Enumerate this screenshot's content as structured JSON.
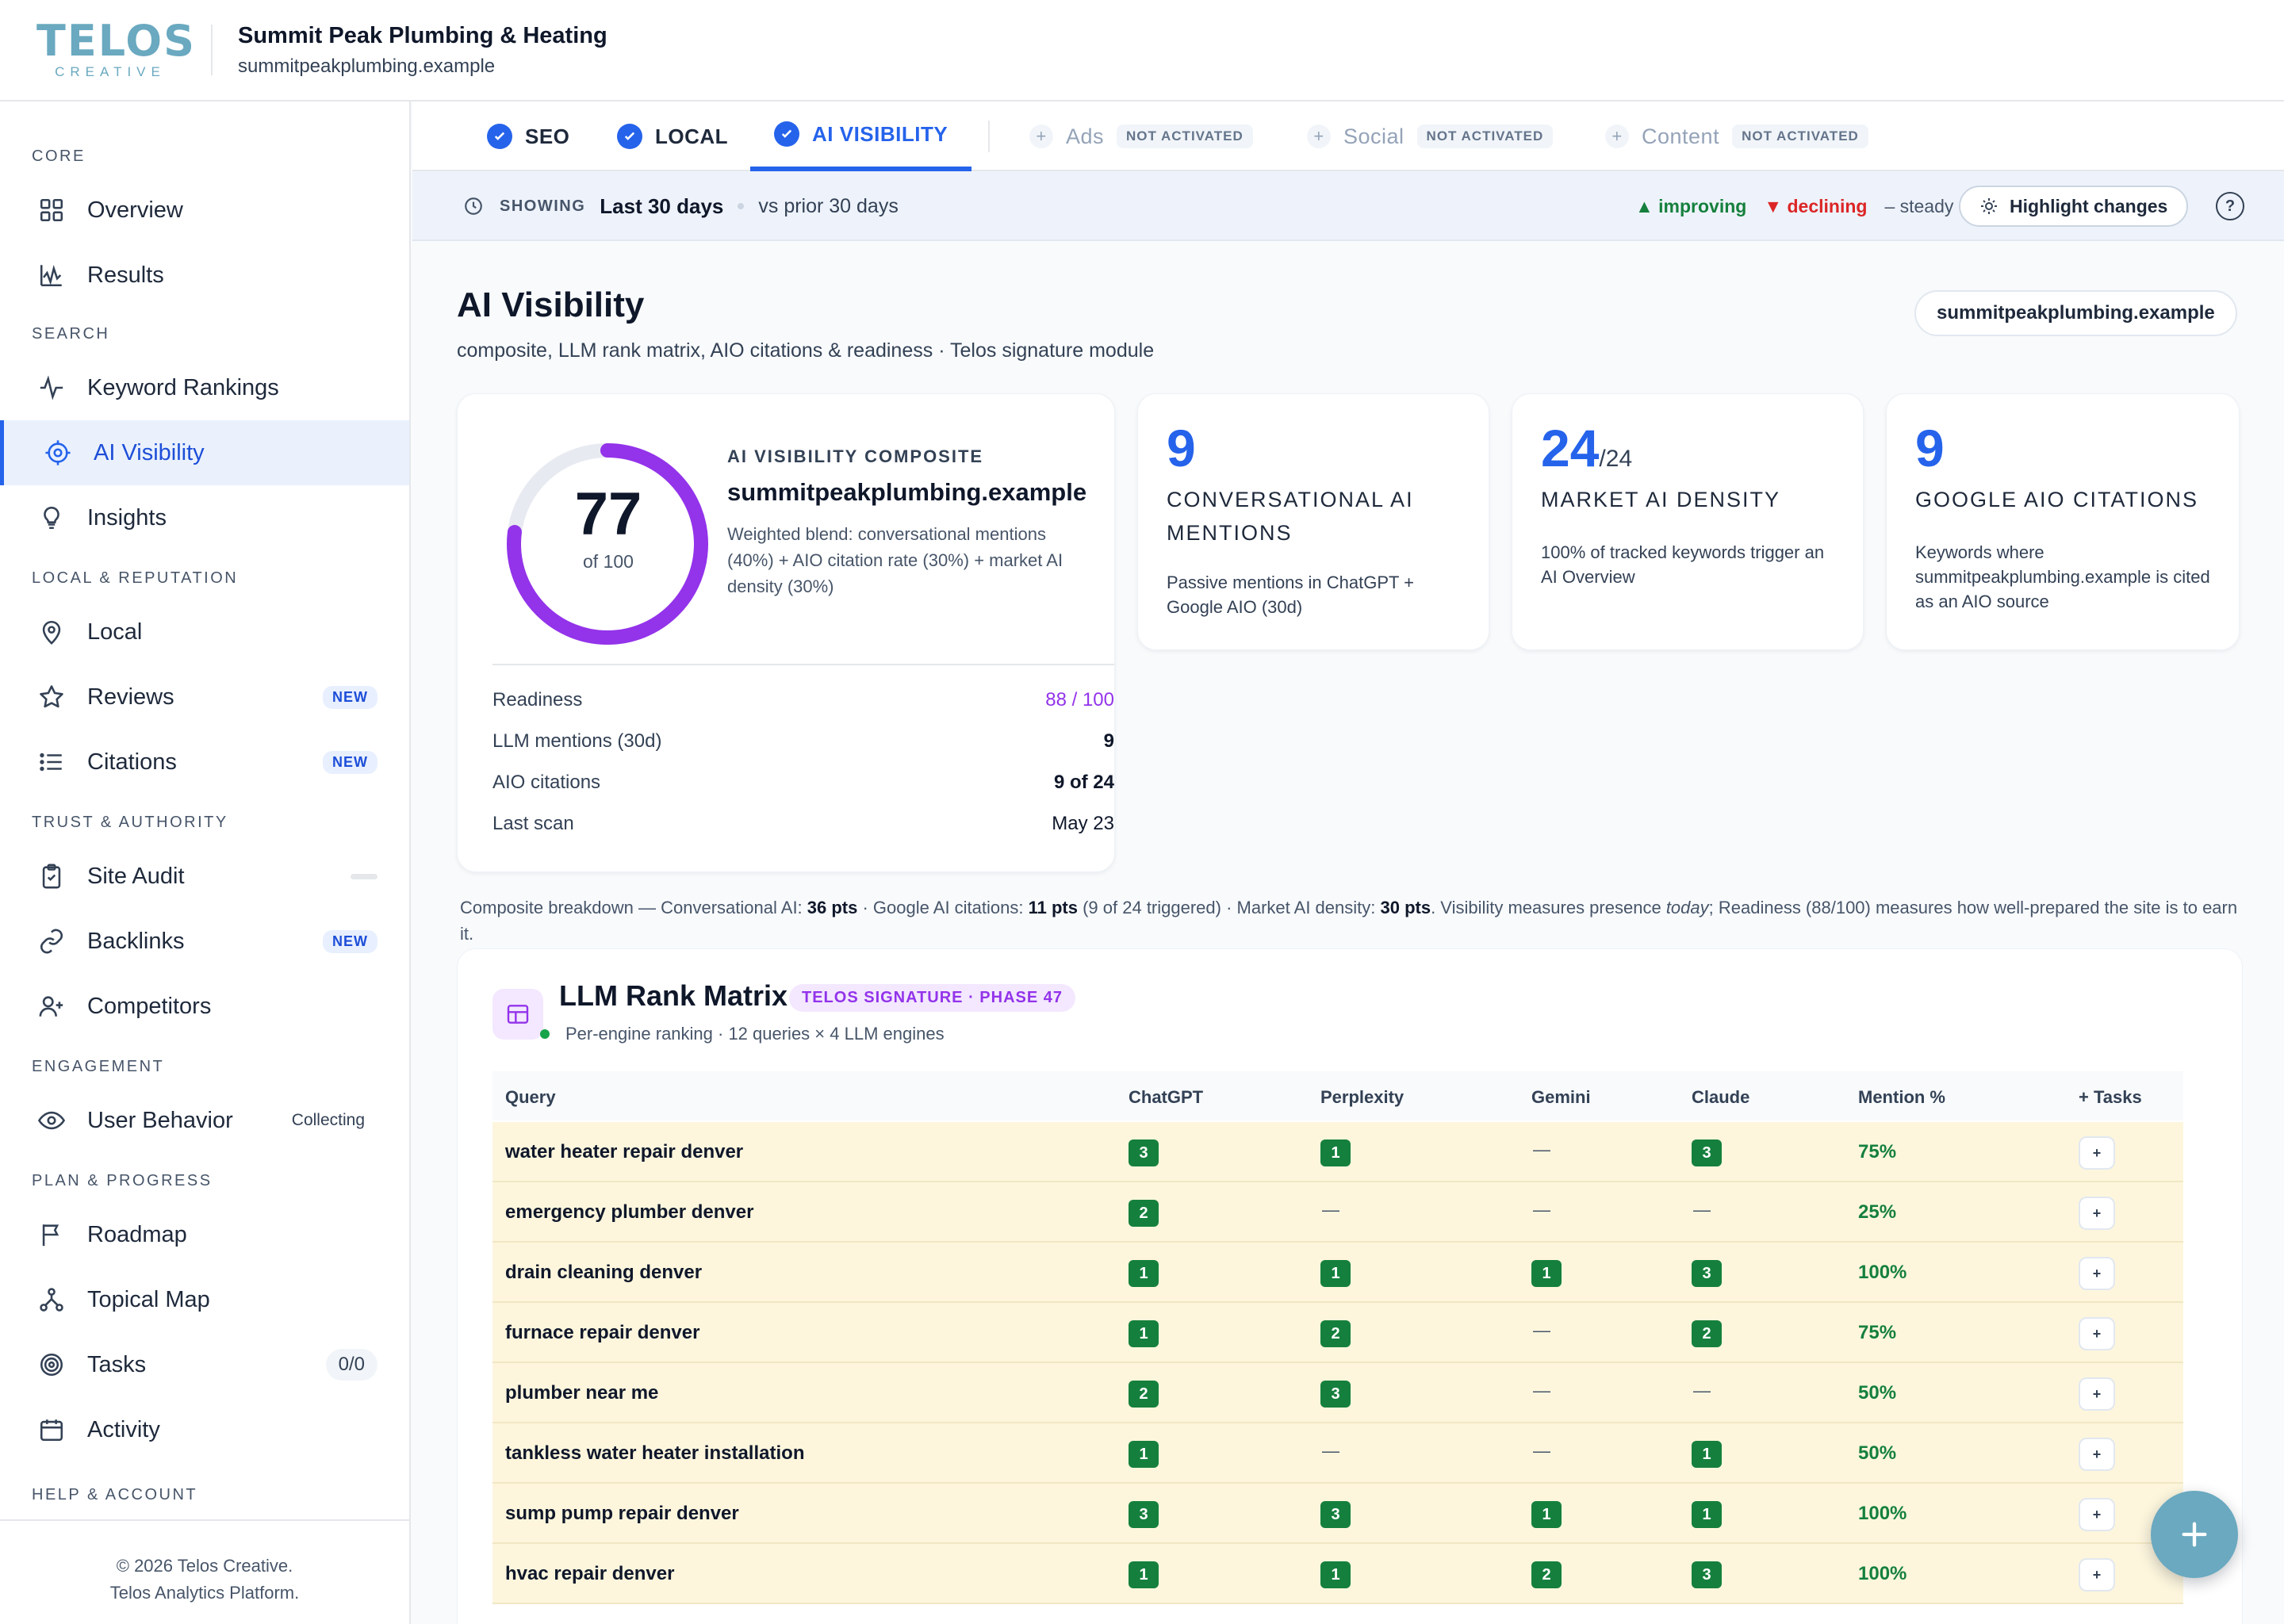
{
  "brand": {
    "logo_main": "TELOS",
    "logo_sub": "CREATIVE"
  },
  "org": {
    "name": "Summit Peak Plumbing & Heating",
    "domain": "summitpeakplumbing.example"
  },
  "sidebar": {
    "sections": [
      "CORE",
      "SEARCH",
      "LOCAL & REPUTATION",
      "TRUST & AUTHORITY",
      "ENGAGEMENT",
      "PLAN & PROGRESS",
      "HELP & ACCOUNT"
    ],
    "items": [
      {
        "label": "Overview",
        "icon": "grid-icon"
      },
      {
        "label": "Results",
        "icon": "pulse-chart-icon"
      },
      {
        "label": "Keyword Rankings",
        "icon": "activity-icon"
      },
      {
        "label": "AI Visibility",
        "icon": "target-icon",
        "active": true
      },
      {
        "label": "Insights",
        "icon": "lightbulb-icon"
      },
      {
        "label": "Local",
        "icon": "map-pin-icon"
      },
      {
        "label": "Reviews",
        "icon": "star-icon",
        "badge": "NEW"
      },
      {
        "label": "Citations",
        "icon": "list-icon",
        "badge": "NEW"
      },
      {
        "label": "Site Audit",
        "icon": "clipboard-check-icon"
      },
      {
        "label": "Backlinks",
        "icon": "link-icon",
        "badge": "NEW"
      },
      {
        "label": "Competitors",
        "icon": "user-plus-icon"
      },
      {
        "label": "User Behavior",
        "icon": "eye-icon",
        "badge": "Collecting"
      },
      {
        "label": "Roadmap",
        "icon": "flag-icon"
      },
      {
        "label": "Topical Map",
        "icon": "network-icon"
      },
      {
        "label": "Tasks",
        "icon": "bullseye-icon",
        "badge": "0/0"
      },
      {
        "label": "Activity",
        "icon": "calendar-icon"
      }
    ],
    "footer_line1": "© 2026 Telos Creative.",
    "footer_line2": "Telos Analytics Platform."
  },
  "tabs": {
    "active": [
      {
        "label": "SEO"
      },
      {
        "label": "LOCAL"
      },
      {
        "label": "AI VISIBILITY"
      }
    ],
    "inactive": [
      {
        "label": "Ads"
      },
      {
        "label": "Social"
      },
      {
        "label": "Content"
      }
    ],
    "inactive_badge": "NOT ACTIVATED"
  },
  "filter": {
    "showing_label": "SHOWING",
    "range": "Last 30 days",
    "compare": "vs prior 30 days",
    "improving": "▲ improving",
    "declining": "▼ declining",
    "steady": "– steady",
    "highlight_button": "Highlight changes",
    "help": "?"
  },
  "page": {
    "title": "AI Visibility",
    "subtitle": "composite, LLM rank matrix, AIO citations & readiness · Telos signature module",
    "domain_pill": "summitpeakplumbing.example"
  },
  "composite": {
    "eyebrow": "AI VISIBILITY COMPOSITE",
    "domain": "summitpeakplumbing.example",
    "description": "Weighted blend: conversational mentions (40%) + AIO citation rate (30%) + market AI density (30%)",
    "score": "77",
    "score_fraction": 0.77,
    "of_label": "of 100",
    "rows": [
      {
        "k": "Readiness",
        "v": "88 / 100"
      },
      {
        "k": "LLM mentions (30d)",
        "v": "9"
      },
      {
        "k": "AIO citations",
        "v": "9 of 24"
      },
      {
        "k": "Last scan",
        "v": "May 23"
      }
    ]
  },
  "stats": [
    {
      "value": "9",
      "suffix": "",
      "label": "CONVERSATIONAL AI MENTIONS",
      "desc": "Passive mentions in ChatGPT + Google AIO (30d)"
    },
    {
      "value": "24",
      "suffix": "/24",
      "label": "MARKET AI DENSITY",
      "desc": "100% of tracked keywords trigger an AI Overview"
    },
    {
      "value": "9",
      "suffix": "",
      "label": "GOOGLE AIO CITATIONS",
      "desc": "Keywords where summitpeakplumbing.example is cited as an AIO source"
    }
  ],
  "breakdown": {
    "p1": "Composite breakdown — Conversational AI: ",
    "b1": "36 pts",
    "p2": " · Google AI citations: ",
    "b2": "11 pts",
    "p3": " (9 of 24 triggered) · Market AI density: ",
    "b3": "30 pts",
    "p4": ". Visibility measures presence ",
    "i1": "today",
    "p5": "; Readiness (88/100) measures how well-prepared the site is to earn it."
  },
  "matrix": {
    "title": "LLM Rank Matrix",
    "pill": "TELOS SIGNATURE · PHASE 47",
    "subtitle": "Per-engine ranking · 12 queries × 4 LLM engines",
    "columns": [
      "Query",
      "ChatGPT",
      "Perplexity",
      "Gemini",
      "Claude",
      "Mention %",
      "+ Tasks"
    ],
    "task_label": "+",
    "rows": [
      {
        "query": "water heater repair denver",
        "ranks": [
          "3",
          "1",
          "—",
          "3"
        ],
        "mention": "75%"
      },
      {
        "query": "emergency plumber denver",
        "ranks": [
          "2",
          "—",
          "—",
          "—"
        ],
        "mention": "25%"
      },
      {
        "query": "drain cleaning denver",
        "ranks": [
          "1",
          "1",
          "1",
          "3"
        ],
        "mention": "100%"
      },
      {
        "query": "furnace repair denver",
        "ranks": [
          "1",
          "2",
          "—",
          "2"
        ],
        "mention": "75%"
      },
      {
        "query": "plumber near me",
        "ranks": [
          "2",
          "3",
          "—",
          "—"
        ],
        "mention": "50%"
      },
      {
        "query": "tankless water heater installation",
        "ranks": [
          "1",
          "—",
          "—",
          "1"
        ],
        "mention": "50%"
      },
      {
        "query": "sump pump repair denver",
        "ranks": [
          "3",
          "3",
          "1",
          "1"
        ],
        "mention": "100%"
      },
      {
        "query": "hvac repair denver",
        "ranks": [
          "1",
          "1",
          "2",
          "3"
        ],
        "mention": "100%"
      }
    ]
  },
  "colors": {
    "accent": "#2563eb",
    "brand": "#6aa9c0",
    "purple": "#9333ea",
    "rank_green": "#15803d",
    "row_highlight": "#fdf6dd"
  }
}
